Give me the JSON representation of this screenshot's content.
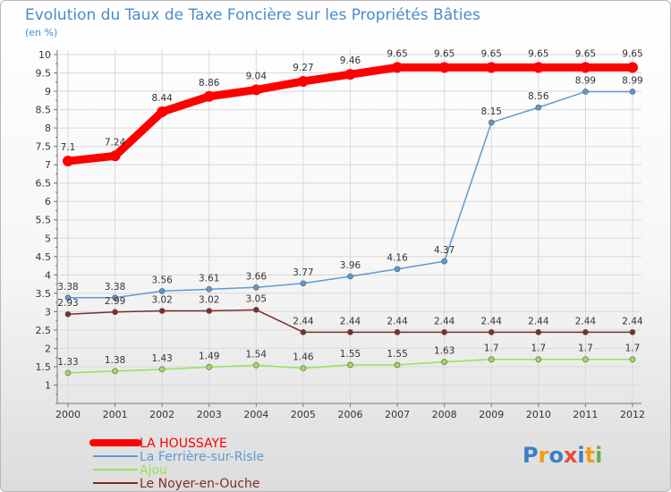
{
  "chart_data": {
    "type": "line",
    "title": "Evolution du Taux de Taxe Foncière sur les Propriétés Bâties",
    "ylabel": "(en %)",
    "xlabel": "",
    "ylim": [
      0.5,
      10
    ],
    "yticks": [
      "1",
      "1.5",
      "2",
      "2.5",
      "3",
      "3.5",
      "4",
      "4.5",
      "5",
      "5.5",
      "6",
      "6.5",
      "7",
      "7.5",
      "8",
      "8.5",
      "9",
      "9.5",
      "10"
    ],
    "categories": [
      "2000",
      "2001",
      "2002",
      "2003",
      "2004",
      "2005",
      "2006",
      "2007",
      "2008",
      "2009",
      "2010",
      "2011",
      "2012"
    ],
    "series": [
      {
        "name": "La Ferrière-sur-Risle",
        "color": "#5b9bd5",
        "values": [
          3.38,
          3.38,
          3.56,
          3.61,
          3.66,
          3.77,
          3.96,
          4.16,
          4.37,
          8.15,
          8.56,
          8.99,
          8.99
        ],
        "labels": [
          "3.38",
          "3.38",
          "3.56",
          "3.61",
          "3.66",
          "3.77",
          "3.96",
          "4.16",
          "4.37",
          "8.15",
          "8.56",
          "8.99",
          "8.99"
        ]
      },
      {
        "name": "Ajou",
        "color": "#99e05a",
        "values": [
          1.33,
          1.38,
          1.43,
          1.49,
          1.54,
          1.46,
          1.55,
          1.55,
          1.63,
          1.7,
          1.7,
          1.7,
          1.7
        ],
        "labels": [
          "1.33",
          "1.38",
          "1.43",
          "1.49",
          "1.54",
          "1.46",
          "1.55",
          "1.55",
          "1.63",
          "1.7",
          "1.7",
          "1.7",
          "1.7"
        ]
      },
      {
        "name": "Le Noyer-en-Ouche",
        "color": "#7d2c2c",
        "values": [
          2.93,
          2.99,
          3.02,
          3.02,
          3.05,
          2.44,
          2.44,
          2.44,
          2.44,
          2.44,
          2.44,
          2.44,
          2.44
        ],
        "labels": [
          "2.93",
          "2.99",
          "3.02",
          "3.02",
          "3.05",
          "2.44",
          "2.44",
          "2.44",
          "2.44",
          "2.44",
          "2.44",
          "2.44",
          "2.44"
        ]
      },
      {
        "name": "LA HOUSSAYE",
        "color": "#ff0000",
        "values": [
          7.1,
          7.24,
          8.44,
          8.86,
          9.04,
          9.27,
          9.46,
          9.65,
          9.65,
          9.65,
          9.65,
          9.65,
          9.65
        ],
        "labels": [
          "7.1",
          "7.24",
          "8.44",
          "8.86",
          "9.04",
          "9.27",
          "9.46",
          "9.65",
          "9.65",
          "9.65",
          "9.65",
          "9.65",
          "9.65"
        ]
      }
    ],
    "legend_order": [
      "LA HOUSSAYE",
      "La Ferrière-sur-Risle",
      "Ajou",
      "Le Noyer-en-Ouche"
    ],
    "legend_position": "bottom-left"
  },
  "brand": {
    "letters": [
      "P",
      "r",
      "o",
      "x",
      "i",
      "t",
      "i"
    ],
    "colors": [
      "#3a7fc4",
      "#f39c12",
      "#3a7fc4",
      "#e74c3c",
      "#3a7fc4",
      "#f39c12",
      "#6ab04c"
    ]
  }
}
